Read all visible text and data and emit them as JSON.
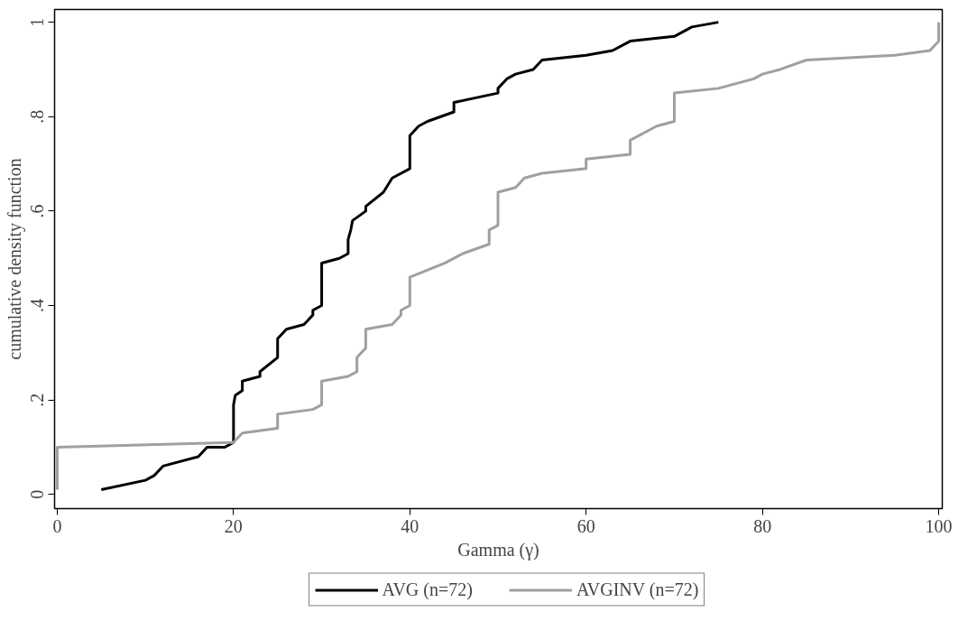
{
  "chart_data": {
    "type": "line",
    "xlabel": "Gamma (γ)",
    "ylabel": "cumulative density function",
    "xlim": [
      -0.3,
      100.4
    ],
    "ylim": [
      -0.03,
      1.027
    ],
    "xticks": [
      0,
      20,
      40,
      60,
      80,
      100
    ],
    "yticks": [
      {
        "value": 0,
        "label": "0"
      },
      {
        "value": 0.2,
        "label": ".2"
      },
      {
        "value": 0.4,
        "label": ".4"
      },
      {
        "value": 0.6,
        "label": ".6"
      },
      {
        "value": 0.8,
        "label": ".8"
      },
      {
        "value": 1,
        "label": "1"
      }
    ],
    "legend": "bottom",
    "marker": "none",
    "line_style": "solid",
    "series": [
      {
        "name": "AVG (n=72)",
        "color": "#000000",
        "x": [
          5,
          10,
          11,
          12,
          16,
          17,
          19,
          20,
          20,
          20.2,
          21,
          21,
          23,
          23,
          25,
          25,
          26,
          28,
          29,
          29,
          30,
          30,
          32,
          33,
          33,
          33.3,
          33.5,
          35,
          35,
          37,
          38,
          40,
          40,
          41,
          42,
          45,
          45,
          50,
          50,
          51,
          52,
          54,
          55,
          60,
          63,
          65,
          70,
          72,
          75
        ],
        "values": [
          0.01,
          0.03,
          0.04,
          0.06,
          0.08,
          0.1,
          0.1,
          0.11,
          0.19,
          0.21,
          0.22,
          0.24,
          0.25,
          0.26,
          0.29,
          0.33,
          0.35,
          0.36,
          0.38,
          0.39,
          0.4,
          0.49,
          0.5,
          0.51,
          0.54,
          0.56,
          0.58,
          0.6,
          0.61,
          0.64,
          0.67,
          0.69,
          0.76,
          0.78,
          0.79,
          0.81,
          0.83,
          0.85,
          0.86,
          0.88,
          0.89,
          0.9,
          0.92,
          0.93,
          0.94,
          0.96,
          0.97,
          0.99,
          1.0
        ]
      },
      {
        "name": "AVGINV (n=72)",
        "color": "#a0a0a0",
        "x": [
          0,
          0,
          20,
          21,
          25,
          25,
          29,
          30,
          30,
          33,
          34,
          34,
          35,
          35,
          38,
          39,
          39,
          40,
          40,
          44,
          46,
          49,
          49,
          50,
          50,
          52,
          53,
          55,
          60,
          60,
          65,
          65,
          68,
          70,
          70,
          75,
          79,
          80,
          82,
          85,
          95,
          99,
          100,
          100
        ],
        "values": [
          0.01,
          0.1,
          0.11,
          0.13,
          0.14,
          0.17,
          0.18,
          0.19,
          0.24,
          0.25,
          0.26,
          0.29,
          0.31,
          0.35,
          0.36,
          0.38,
          0.39,
          0.4,
          0.46,
          0.49,
          0.51,
          0.53,
          0.56,
          0.57,
          0.64,
          0.65,
          0.67,
          0.68,
          0.69,
          0.71,
          0.72,
          0.75,
          0.78,
          0.79,
          0.85,
          0.86,
          0.88,
          0.89,
          0.9,
          0.92,
          0.93,
          0.94,
          0.96,
          1.0
        ]
      }
    ]
  }
}
